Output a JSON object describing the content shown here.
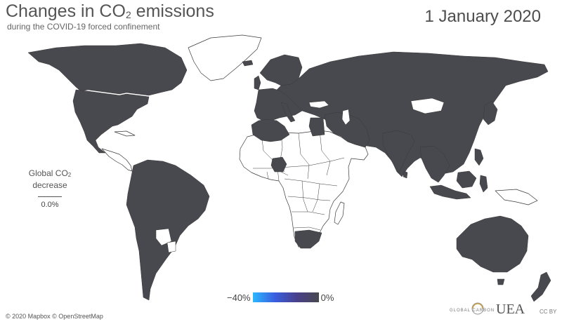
{
  "header": {
    "title_prefix": "Changes in CO",
    "title_sub": "2",
    "title_suffix": " emissions",
    "subtitle": "during the COVID-19 forced confinement",
    "date": "1 January 2020"
  },
  "stat": {
    "label_prefix": "Global CO",
    "label_sub": "2",
    "label_line2": "decrease",
    "value": "0.0%"
  },
  "legend": {
    "min_label": "−40%",
    "max_label": "0%",
    "colors": [
      "#2bb8ff",
      "#3a5ee0",
      "#48408a",
      "#48484f"
    ]
  },
  "map": {
    "data_country_color": "#48484f",
    "no_data_color": "#ffffff",
    "border_color": "#3a3a3a",
    "background": "#ffffff"
  },
  "footer": {
    "credit": "© 2020 Mapbox © OpenStreetMap",
    "gcp_logo_text": "GLOBAL CARBON",
    "uea_logo_text": "UEA",
    "license": "CC BY"
  }
}
